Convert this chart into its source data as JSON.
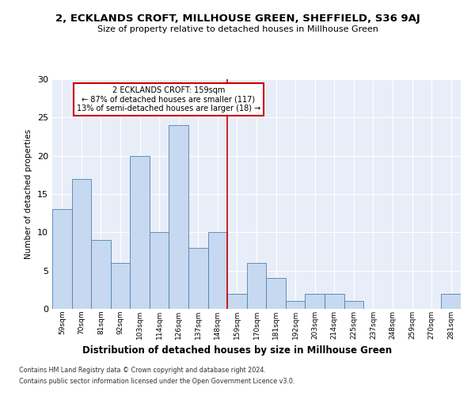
{
  "title1": "2, ECKLANDS CROFT, MILLHOUSE GREEN, SHEFFIELD, S36 9AJ",
  "title2": "Size of property relative to detached houses in Millhouse Green",
  "xlabel": "Distribution of detached houses by size in Millhouse Green",
  "ylabel": "Number of detached properties",
  "categories": [
    "59sqm",
    "70sqm",
    "81sqm",
    "92sqm",
    "103sqm",
    "114sqm",
    "126sqm",
    "137sqm",
    "148sqm",
    "159sqm",
    "170sqm",
    "181sqm",
    "192sqm",
    "203sqm",
    "214sqm",
    "225sqm",
    "237sqm",
    "248sqm",
    "259sqm",
    "270sqm",
    "281sqm"
  ],
  "values": [
    13,
    17,
    9,
    6,
    20,
    10,
    24,
    8,
    10,
    2,
    6,
    4,
    1,
    2,
    2,
    1,
    0,
    0,
    0,
    0,
    2
  ],
  "bar_color": "#c6d9f0",
  "bar_edge_color": "#5080b0",
  "vline_x_index": 9,
  "vline_color": "#cc0000",
  "annotation_lines": [
    "2 ECKLANDS CROFT: 159sqm",
    "← 87% of detached houses are smaller (117)",
    "13% of semi-detached houses are larger (18) →"
  ],
  "annotation_box_color": "#ffffff",
  "annotation_box_edge_color": "#cc0000",
  "ylim": [
    0,
    30
  ],
  "yticks": [
    0,
    5,
    10,
    15,
    20,
    25,
    30
  ],
  "background_color": "#e8eef8",
  "footer1": "Contains HM Land Registry data © Crown copyright and database right 2024.",
  "footer2": "Contains public sector information licensed under the Open Government Licence v3.0."
}
